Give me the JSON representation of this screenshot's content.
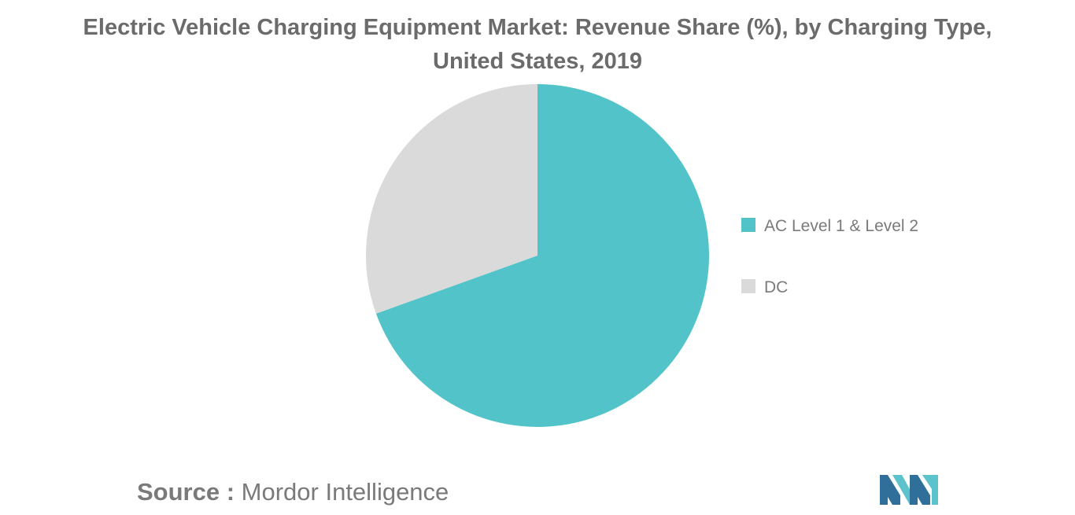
{
  "chart_data": {
    "type": "pie",
    "title": "Electric Vehicle Charging Equipment Market: Revenue Share (%), by Charging Type, United States, 2019",
    "title_lines": [
      "Electric Vehicle Charging Equipment Market: Revenue Share (%), by Charging Type,",
      "United States, 2019"
    ],
    "slices": [
      {
        "label": "AC Level 1 & Level 2",
        "value": 69.5,
        "color": "#52c4c9"
      },
      {
        "label": "DC",
        "value": 30.5,
        "color": "#dadada"
      }
    ],
    "legend_position": "right",
    "start_angle_deg": 0,
    "direction": "clockwise"
  },
  "source": {
    "label": "Source :",
    "text": "Mordor Intelligence"
  },
  "logo": {
    "name": "mordor-intelligence-logo",
    "colors": [
      "#2f6f9a",
      "#5cc3cc"
    ]
  }
}
